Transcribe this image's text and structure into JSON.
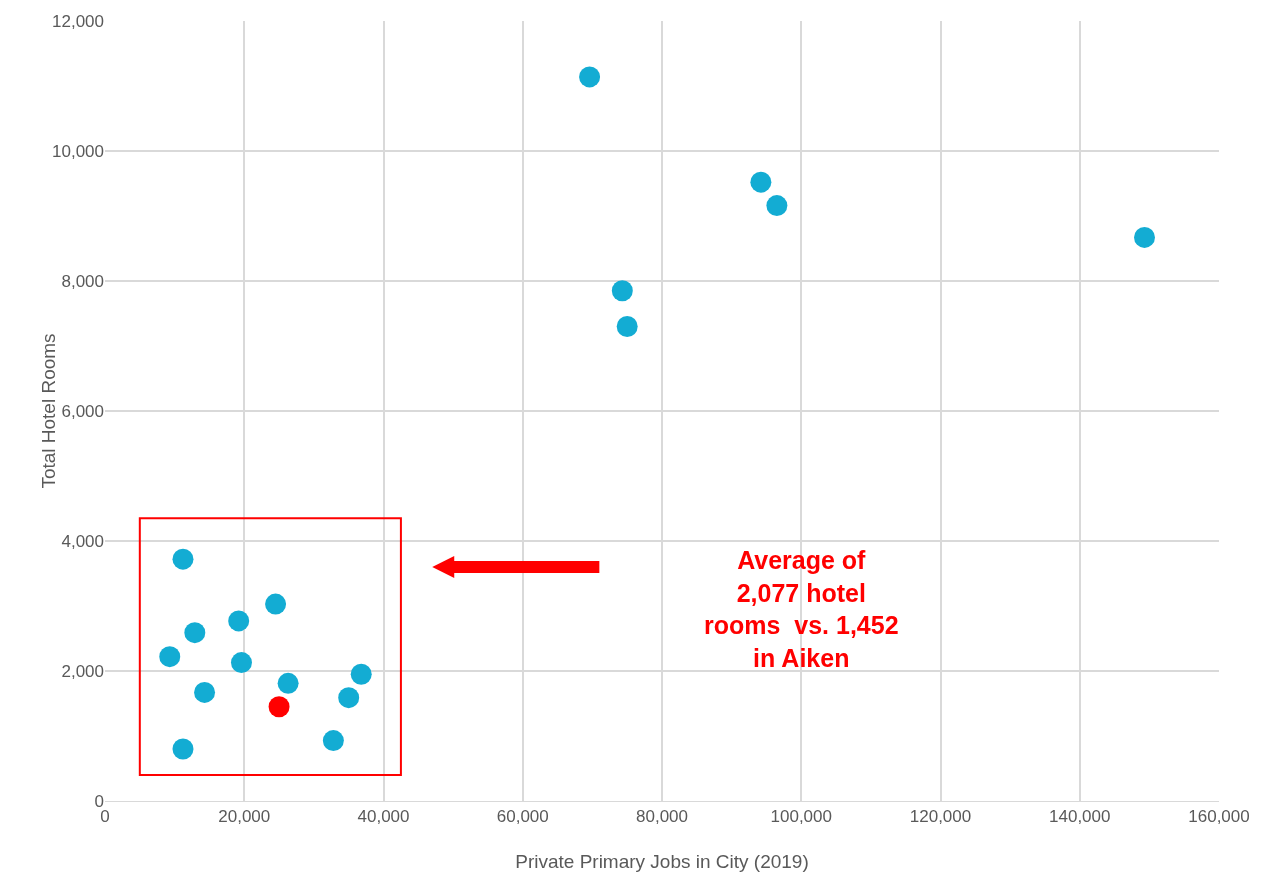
{
  "chart_data": {
    "type": "scatter",
    "xlabel": "Private Primary Jobs in City (2019)",
    "ylabel": "Total Hotel Rooms",
    "series": [
      {
        "color": "#13acd3",
        "x": [
          69600,
          94200,
          96500,
          149300,
          74300,
          75000,
          11200,
          24500,
          12900,
          19200,
          9300,
          19600,
          36800,
          26300,
          14300,
          35000,
          32800,
          11200
        ],
        "values": [
          11140,
          9520,
          9160,
          8670,
          7850,
          7300,
          3720,
          3030,
          2590,
          2770,
          2220,
          2130,
          1950,
          1810,
          1670,
          1590,
          930,
          800
        ]
      },
      {
        "color": "#ff0000",
        "x": [
          25000
        ],
        "values": [
          1450
        ]
      }
    ],
    "annotations": [
      "Average of\n2,077 hotel\nrooms  vs. 1,452\nin Aiken"
    ],
    "xlim": [
      0,
      160000
    ],
    "xticks": [
      {
        "value": 0,
        "label": "0"
      },
      {
        "value": 20000,
        "label": "20,000"
      },
      {
        "value": 40000,
        "label": "40,000"
      },
      {
        "value": 60000,
        "label": "60,000"
      },
      {
        "value": 80000,
        "label": "80,000"
      },
      {
        "value": 100000,
        "label": "100,000"
      },
      {
        "value": 120000,
        "label": "120,000"
      },
      {
        "value": 140000,
        "label": "140,000"
      },
      {
        "value": 160000,
        "label": "160,000"
      }
    ],
    "ylim": [
      0,
      12000
    ],
    "yticks": [
      {
        "value": 0,
        "label": "0"
      },
      {
        "value": 2000,
        "label": "2,000"
      },
      {
        "value": 4000,
        "label": "4,000"
      },
      {
        "value": 6000,
        "label": "6,000"
      },
      {
        "value": 8000,
        "label": "8,000"
      },
      {
        "value": 10000,
        "label": "10,000"
      },
      {
        "value": 12000,
        "label": "12,000"
      }
    ],
    "grid": true,
    "marker": "circle"
  }
}
